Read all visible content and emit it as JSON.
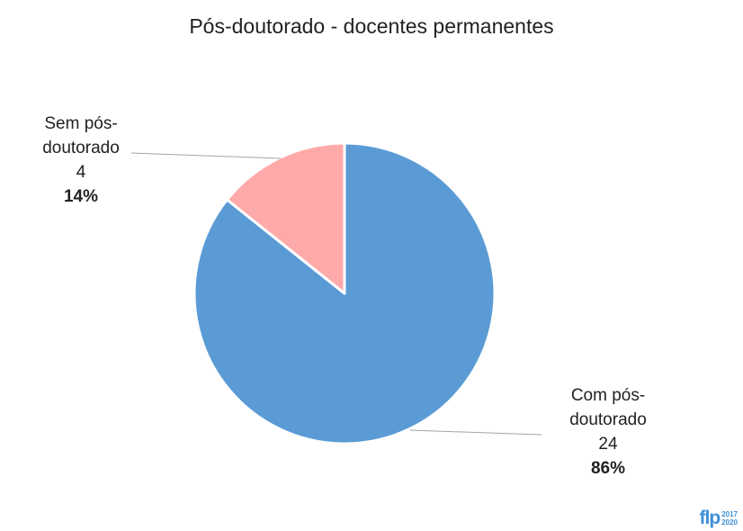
{
  "chart_data": {
    "type": "pie",
    "title": "Pós-doutorado - docentes permanentes",
    "slices": [
      {
        "name_line1": "Com pós-",
        "name_line2": "doutorado",
        "value": 24,
        "value_text": "24",
        "percent_text": "86%",
        "color": "#5b9bd5"
      },
      {
        "name_line1": "Sem pós-",
        "name_line2": "doutorado",
        "value": 4,
        "value_text": "4",
        "percent_text": "14%",
        "color": "#ffaaaa"
      }
    ]
  },
  "logo": {
    "mark": "flp",
    "year_start": "2017",
    "year_end": "2020"
  }
}
